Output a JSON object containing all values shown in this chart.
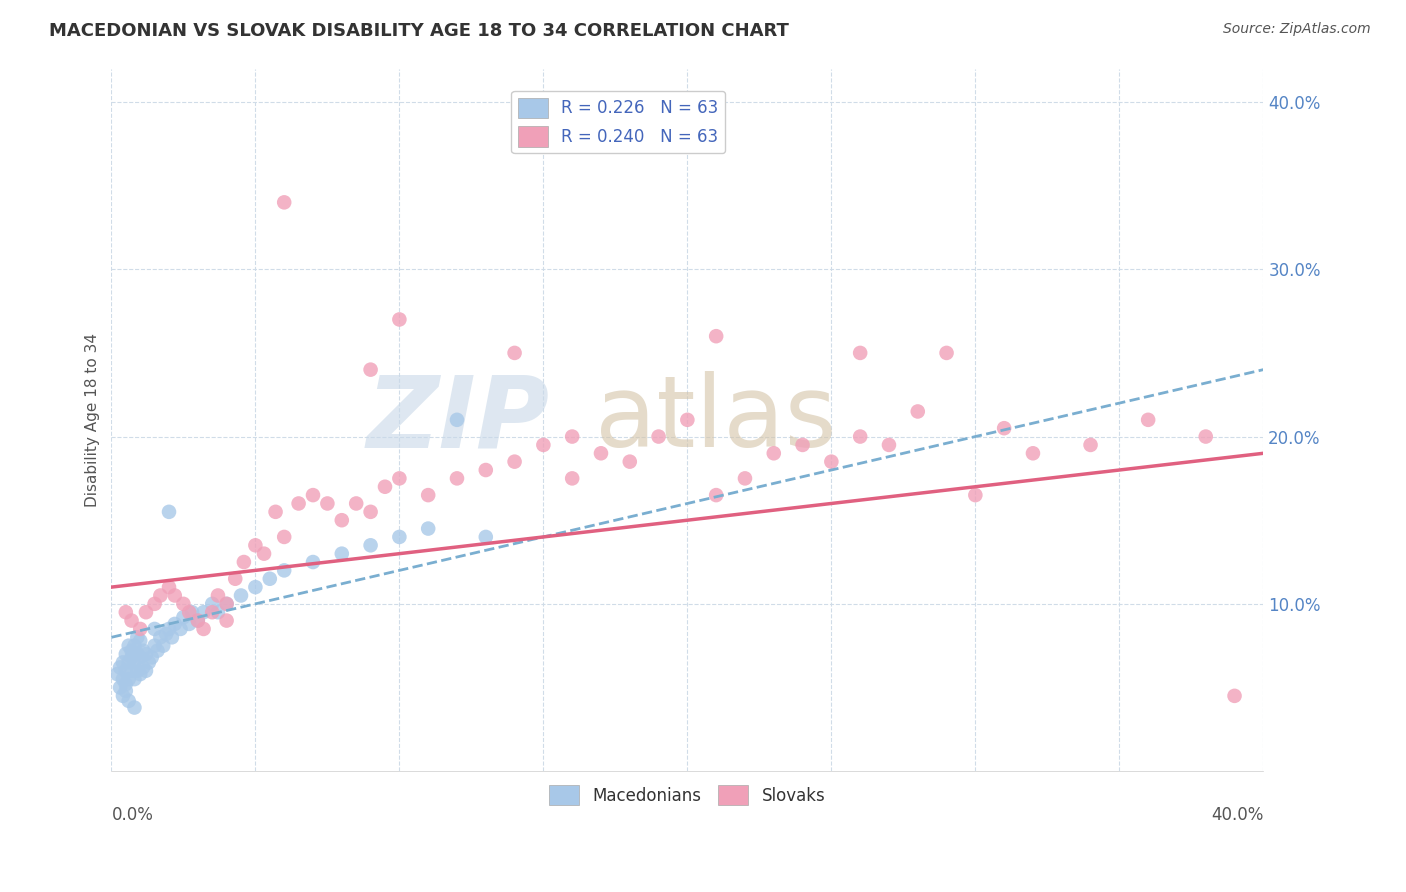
{
  "title": "MACEDONIAN VS SLOVAK DISABILITY AGE 18 TO 34 CORRELATION CHART",
  "source": "Source: ZipAtlas.com",
  "ylabel": "Disability Age 18 to 34",
  "xlim": [
    0.0,
    0.4
  ],
  "ylim": [
    0.0,
    0.42
  ],
  "yticks": [
    0.1,
    0.2,
    0.3,
    0.4
  ],
  "ytick_labels": [
    "10.0%",
    "20.0%",
    "30.0%",
    "40.0%"
  ],
  "color_macedonian": "#a8c8e8",
  "color_slovak": "#f0a0b8",
  "color_macedonian_line": "#7aaed0",
  "color_slovak_line": "#e06080",
  "color_grid": "#d0dce8",
  "background_color": "#ffffff",
  "mac_line_start_y": 0.08,
  "mac_line_end_y": 0.24,
  "slov_line_start_y": 0.11,
  "slov_line_end_y": 0.19,
  "macedonian_x": [
    0.002,
    0.003,
    0.003,
    0.004,
    0.004,
    0.004,
    0.005,
    0.005,
    0.005,
    0.005,
    0.006,
    0.006,
    0.006,
    0.006,
    0.007,
    0.007,
    0.007,
    0.008,
    0.008,
    0.008,
    0.008,
    0.009,
    0.009,
    0.009,
    0.01,
    0.01,
    0.01,
    0.011,
    0.011,
    0.012,
    0.012,
    0.013,
    0.014,
    0.015,
    0.015,
    0.016,
    0.017,
    0.018,
    0.019,
    0.02,
    0.021,
    0.022,
    0.024,
    0.025,
    0.027,
    0.028,
    0.03,
    0.032,
    0.035,
    0.037,
    0.04,
    0.045,
    0.05,
    0.055,
    0.06,
    0.07,
    0.08,
    0.09,
    0.1,
    0.11,
    0.12,
    0.13,
    0.02
  ],
  "macedonian_y": [
    0.058,
    0.062,
    0.05,
    0.055,
    0.045,
    0.065,
    0.06,
    0.052,
    0.07,
    0.048,
    0.055,
    0.065,
    0.075,
    0.042,
    0.06,
    0.068,
    0.072,
    0.055,
    0.065,
    0.075,
    0.038,
    0.06,
    0.07,
    0.08,
    0.058,
    0.068,
    0.078,
    0.062,
    0.072,
    0.06,
    0.07,
    0.065,
    0.068,
    0.075,
    0.085,
    0.072,
    0.08,
    0.075,
    0.082,
    0.085,
    0.08,
    0.088,
    0.085,
    0.092,
    0.088,
    0.095,
    0.09,
    0.095,
    0.1,
    0.095,
    0.1,
    0.105,
    0.11,
    0.115,
    0.12,
    0.125,
    0.13,
    0.135,
    0.14,
    0.145,
    0.21,
    0.14,
    0.155
  ],
  "slovak_x": [
    0.005,
    0.007,
    0.01,
    0.012,
    0.015,
    0.017,
    0.02,
    0.022,
    0.025,
    0.027,
    0.03,
    0.032,
    0.035,
    0.037,
    0.04,
    0.043,
    0.046,
    0.05,
    0.053,
    0.057,
    0.06,
    0.065,
    0.07,
    0.075,
    0.08,
    0.085,
    0.09,
    0.095,
    0.1,
    0.11,
    0.12,
    0.13,
    0.14,
    0.15,
    0.16,
    0.17,
    0.18,
    0.19,
    0.2,
    0.21,
    0.22,
    0.23,
    0.24,
    0.25,
    0.26,
    0.27,
    0.28,
    0.29,
    0.3,
    0.32,
    0.34,
    0.36,
    0.38,
    0.21,
    0.16,
    0.14,
    0.09,
    0.04,
    0.31,
    0.26,
    0.1,
    0.06,
    0.39
  ],
  "slovak_y": [
    0.095,
    0.09,
    0.085,
    0.095,
    0.1,
    0.105,
    0.11,
    0.105,
    0.1,
    0.095,
    0.09,
    0.085,
    0.095,
    0.105,
    0.1,
    0.115,
    0.125,
    0.135,
    0.13,
    0.155,
    0.14,
    0.16,
    0.165,
    0.16,
    0.15,
    0.16,
    0.155,
    0.17,
    0.175,
    0.165,
    0.175,
    0.18,
    0.185,
    0.195,
    0.2,
    0.19,
    0.185,
    0.2,
    0.21,
    0.26,
    0.175,
    0.19,
    0.195,
    0.185,
    0.2,
    0.195,
    0.215,
    0.25,
    0.165,
    0.19,
    0.195,
    0.21,
    0.2,
    0.165,
    0.175,
    0.25,
    0.24,
    0.09,
    0.205,
    0.25,
    0.27,
    0.34,
    0.045
  ]
}
